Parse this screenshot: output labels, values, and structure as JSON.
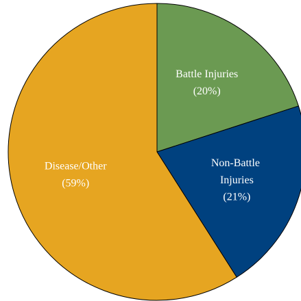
{
  "chart_data": {
    "type": "pie",
    "categories": [
      "Battle Injuries",
      "Non-Battle Injuries",
      "Disease/Other"
    ],
    "values": [
      20,
      21,
      59
    ],
    "value_labels": [
      "(20%)",
      "(21%)",
      "(59%)"
    ],
    "colors": [
      "#6b9a52",
      "#00417f",
      "#e6a521"
    ]
  }
}
